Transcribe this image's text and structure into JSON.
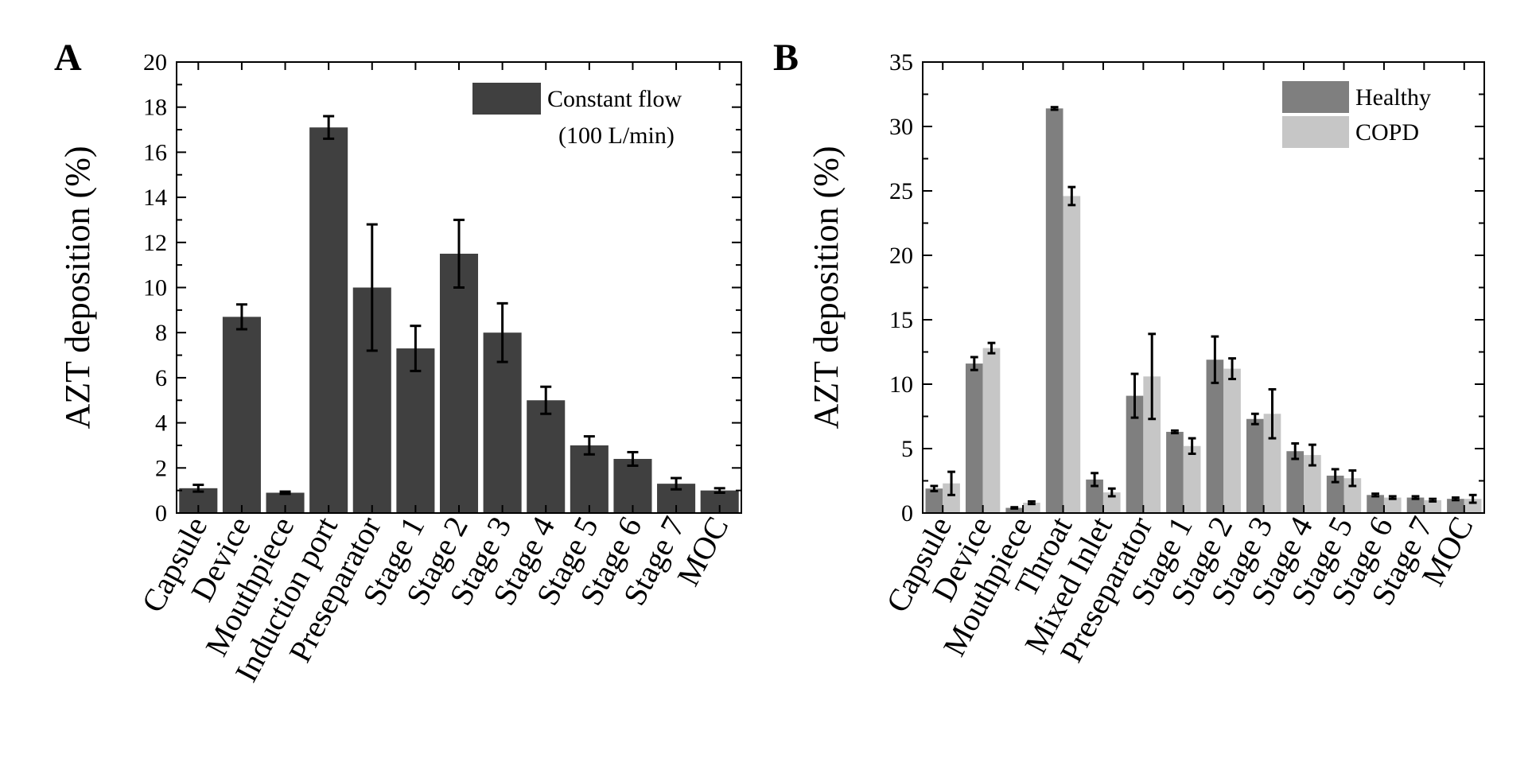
{
  "chart_data": [
    {
      "panel": "A",
      "type": "bar",
      "ylabel": "AZT deposition (%)",
      "ylim": [
        0,
        20
      ],
      "yticks": [
        0,
        2,
        4,
        6,
        8,
        10,
        12,
        14,
        16,
        18,
        20
      ],
      "categories": [
        "Capsule",
        "Device",
        "Mouthpiece",
        "Induction port",
        "Preseparator",
        "Stage 1",
        "Stage 2",
        "Stage 3",
        "Stage 4",
        "Stage 5",
        "Stage 6",
        "Stage 7",
        "MOC"
      ],
      "series": [
        {
          "name": "Constant flow",
          "name_line2": "(100 L/min)",
          "color": "#404040",
          "values": [
            1.1,
            8.7,
            0.9,
            17.1,
            10.0,
            7.3,
            11.5,
            8.0,
            5.0,
            3.0,
            2.4,
            1.3,
            1.0
          ],
          "errors": [
            0.15,
            0.55,
            0.05,
            0.5,
            2.8,
            1.0,
            1.5,
            1.3,
            0.6,
            0.4,
            0.3,
            0.25,
            0.1
          ]
        }
      ]
    },
    {
      "panel": "B",
      "type": "bar",
      "ylabel": "AZT deposition (%)",
      "ylim": [
        0,
        35
      ],
      "yticks": [
        0,
        5,
        10,
        15,
        20,
        25,
        30,
        35
      ],
      "categories": [
        "Capsule",
        "Device",
        "Mouthpiece",
        "Throat",
        "Mixed Inlet",
        "Preseparator",
        "Stage 1",
        "Stage 2",
        "Stage 3",
        "Stage 4",
        "Stage 5",
        "Stage 6",
        "Stage 7",
        "MOC"
      ],
      "series": [
        {
          "name": "Healthy",
          "color": "#7f7f7f",
          "values": [
            1.9,
            11.6,
            0.4,
            31.4,
            2.6,
            9.1,
            6.3,
            11.9,
            7.3,
            4.8,
            2.9,
            1.4,
            1.2,
            1.1
          ],
          "errors": [
            0.2,
            0.5,
            0.05,
            0.1,
            0.5,
            1.7,
            0.1,
            1.8,
            0.4,
            0.6,
            0.5,
            0.1,
            0.1,
            0.1
          ]
        },
        {
          "name": "COPD",
          "color": "#c6c6c6",
          "values": [
            2.3,
            12.8,
            0.8,
            24.6,
            1.6,
            10.6,
            5.2,
            11.2,
            7.7,
            4.5,
            2.7,
            1.2,
            1.0,
            1.1
          ],
          "errors": [
            0.9,
            0.4,
            0.1,
            0.7,
            0.3,
            3.3,
            0.6,
            0.8,
            1.9,
            0.8,
            0.6,
            0.1,
            0.1,
            0.3
          ]
        }
      ]
    }
  ]
}
